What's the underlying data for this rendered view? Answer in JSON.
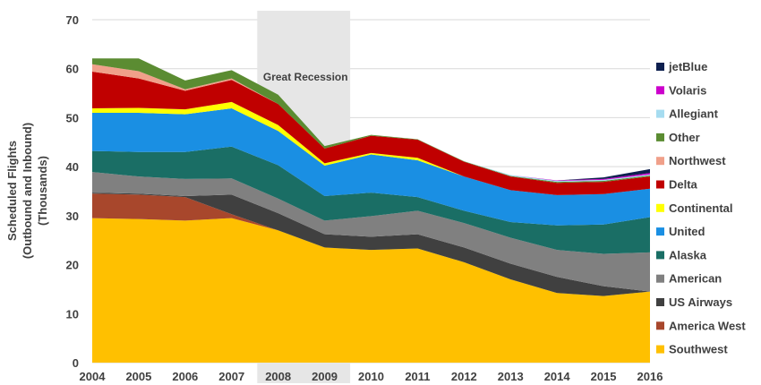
{
  "chart_data": {
    "type": "area",
    "stacked": true,
    "x": [
      "2004",
      "2005",
      "2006",
      "2007",
      "2008",
      "2009",
      "2010",
      "2011",
      "2012",
      "2013",
      "2014",
      "2015",
      "2016"
    ],
    "ylabel_line1": "Scheduled Flights",
    "ylabel_line2": "(Outbound and Inbound)",
    "ylabel_line3": "(Thousands)",
    "ylim": [
      0,
      70
    ],
    "yticks": [
      "0",
      "10",
      "20",
      "30",
      "40",
      "50",
      "60",
      "70"
    ],
    "grid": true,
    "legend_position": "right",
    "annotation": {
      "label": "Great Recession",
      "start": 2007.55,
      "end": 2009.55,
      "color": "#e6e6e6"
    },
    "series": [
      {
        "name": "Southwest",
        "color": "#ffc000",
        "values": [
          29.5,
          29.3,
          29.0,
          29.5,
          27.0,
          23.5,
          23.0,
          23.3,
          20.5,
          17.0,
          14.2,
          13.6,
          14.5
        ]
      },
      {
        "name": "America West",
        "color": "#a8472c",
        "values": [
          5.0,
          5.0,
          4.8,
          0.8,
          0,
          0,
          0,
          0,
          0,
          0,
          0,
          0,
          0
        ]
      },
      {
        "name": "US Airways",
        "color": "#404040",
        "values": [
          0.2,
          0.2,
          0.2,
          4.0,
          3.5,
          2.7,
          2.7,
          2.9,
          3.0,
          3.2,
          3.3,
          2.0,
          0
        ]
      },
      {
        "name": "American",
        "color": "#808080",
        "values": [
          4.2,
          3.5,
          3.5,
          3.3,
          3.0,
          2.8,
          4.2,
          4.8,
          5.0,
          5.3,
          5.5,
          6.6,
          8.0
        ]
      },
      {
        "name": "Alaska",
        "color": "#1a6e65",
        "values": [
          4.3,
          5.0,
          5.5,
          6.5,
          6.8,
          5.0,
          4.8,
          2.8,
          2.5,
          3.2,
          5.0,
          6.0,
          7.2
        ]
      },
      {
        "name": "United",
        "color": "#1a8fe3",
        "values": [
          7.8,
          8.0,
          7.7,
          7.8,
          7.0,
          6.2,
          7.8,
          7.5,
          7.0,
          6.5,
          6.2,
          6.2,
          5.8
        ]
      },
      {
        "name": "Continental",
        "color": "#ffff00",
        "values": [
          0.9,
          1.0,
          1.0,
          1.3,
          1.2,
          0.5,
          0.3,
          0.5,
          0,
          0,
          0,
          0,
          0
        ]
      },
      {
        "name": "Delta",
        "color": "#c00000",
        "values": [
          7.5,
          6.0,
          3.8,
          4.5,
          4.3,
          3.0,
          3.5,
          3.7,
          3.0,
          2.8,
          2.5,
          2.5,
          2.5
        ]
      },
      {
        "name": "Northwest",
        "color": "#f0a08a",
        "values": [
          1.5,
          1.5,
          0.3,
          0.3,
          0,
          0,
          0,
          0,
          0,
          0,
          0,
          0,
          0
        ]
      },
      {
        "name": "Other",
        "color": "#5b8c32",
        "values": [
          1.2,
          2.6,
          1.8,
          1.7,
          1.9,
          0.5,
          0.2,
          0.1,
          0.1,
          0.1,
          0.2,
          0.2,
          0.2
        ]
      },
      {
        "name": "Allegiant",
        "color": "#a6dcf0",
        "values": [
          0,
          0,
          0,
          0,
          0,
          0,
          0,
          0,
          0,
          0.2,
          0.2,
          0.2,
          0.2
        ]
      },
      {
        "name": "Volaris",
        "color": "#cc00cc",
        "values": [
          0,
          0,
          0,
          0,
          0,
          0,
          0,
          0,
          0,
          0,
          0.1,
          0.2,
          0.3
        ]
      },
      {
        "name": "jetBlue",
        "color": "#0d1f4f",
        "values": [
          0,
          0,
          0,
          0,
          0,
          0,
          0,
          0,
          0,
          0,
          0,
          0.3,
          0.8
        ]
      }
    ]
  }
}
